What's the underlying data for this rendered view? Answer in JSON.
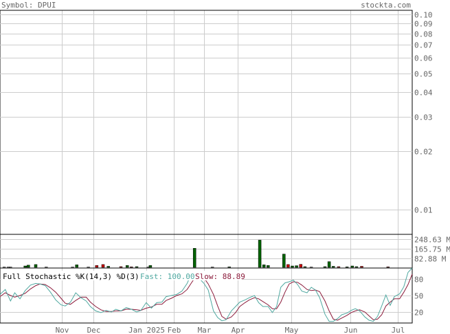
{
  "header": {
    "symbol_label": "Symbol: DPUI",
    "brand": "stockta.com"
  },
  "colors": {
    "up_bar": "#006400",
    "down_bar": "#cc0000",
    "grid": "#cccccc",
    "axis_text": "#666666",
    "fast_line": "#4fa8a0",
    "slow_line": "#8b1a3a"
  },
  "chart_data": [
    {
      "type": "line",
      "panel": "price",
      "scale": "log",
      "ylim": [
        0.0075,
        0.105
      ],
      "y_ticks": [
        0.1,
        0.09,
        0.08,
        0.07,
        0.06,
        0.05,
        0.04,
        0.03,
        0.02,
        0.01
      ],
      "y_tick_labels": [
        "0.10",
        "0.09",
        "0.08",
        "0.07",
        "0.06",
        "0.05",
        "0.04",
        "0.03",
        "0.02",
        "0.01"
      ],
      "series": []
    },
    {
      "type": "bar",
      "panel": "volume",
      "ylim": [
        0,
        290
      ],
      "y_ticks": [
        248.63,
        165.75,
        82.88
      ],
      "y_tick_labels": [
        "248.63 M",
        "165.75 M",
        "82.88 M"
      ],
      "bars": [
        {
          "x": 4,
          "v": 8,
          "dir": "up"
        },
        {
          "x": 8,
          "v": 8,
          "dir": "up"
        },
        {
          "x": 10,
          "v": 8,
          "dir": "up"
        },
        {
          "x": 24,
          "v": 18,
          "dir": "up"
        },
        {
          "x": 27,
          "v": 25,
          "dir": "up"
        },
        {
          "x": 34,
          "v": 30,
          "dir": "up"
        },
        {
          "x": 44,
          "v": 8,
          "dir": "up"
        },
        {
          "x": 69,
          "v": 8,
          "dir": "up"
        },
        {
          "x": 73,
          "v": 28,
          "dir": "up"
        },
        {
          "x": 84,
          "v": 8,
          "dir": "up"
        },
        {
          "x": 92,
          "v": 22,
          "dir": "down"
        },
        {
          "x": 98,
          "v": 30,
          "dir": "down"
        },
        {
          "x": 103,
          "v": 15,
          "dir": "up"
        },
        {
          "x": 115,
          "v": 12,
          "dir": "down"
        },
        {
          "x": 121,
          "v": 22,
          "dir": "up"
        },
        {
          "x": 125,
          "v": 10,
          "dir": "down"
        },
        {
          "x": 130,
          "v": 12,
          "dir": "up"
        },
        {
          "x": 141,
          "v": 8,
          "dir": "up"
        },
        {
          "x": 143,
          "v": 22,
          "dir": "up"
        },
        {
          "x": 185,
          "v": 170,
          "dir": "up"
        },
        {
          "x": 202,
          "v": 8,
          "dir": "up"
        },
        {
          "x": 218,
          "v": 10,
          "dir": "up"
        },
        {
          "x": 247,
          "v": 240,
          "dir": "up"
        },
        {
          "x": 251,
          "v": 28,
          "dir": "up"
        },
        {
          "x": 255,
          "v": 22,
          "dir": "up"
        },
        {
          "x": 270,
          "v": 120,
          "dir": "up"
        },
        {
          "x": 274,
          "v": 30,
          "dir": "down"
        },
        {
          "x": 278,
          "v": 18,
          "dir": "up"
        },
        {
          "x": 282,
          "v": 20,
          "dir": "up"
        },
        {
          "x": 286,
          "v": 32,
          "dir": "down"
        },
        {
          "x": 290,
          "v": 12,
          "dir": "up"
        },
        {
          "x": 296,
          "v": 8,
          "dir": "up"
        },
        {
          "x": 309,
          "v": 12,
          "dir": "up"
        },
        {
          "x": 313,
          "v": 55,
          "dir": "up"
        },
        {
          "x": 317,
          "v": 15,
          "dir": "up"
        },
        {
          "x": 322,
          "v": 12,
          "dir": "down"
        },
        {
          "x": 330,
          "v": 10,
          "dir": "up"
        },
        {
          "x": 335,
          "v": 18,
          "dir": "up"
        },
        {
          "x": 339,
          "v": 12,
          "dir": "up"
        },
        {
          "x": 344,
          "v": 15,
          "dir": "down"
        },
        {
          "x": 369,
          "v": 10,
          "dir": "down"
        }
      ]
    },
    {
      "type": "line",
      "panel": "stochastic",
      "title": "Full Stochastic %K(14,3) %D(3)",
      "fast_label": "Fast: 100.00",
      "slow_label": "Slow: 88.89",
      "ylim": [
        0,
        100
      ],
      "y_ticks": [
        80,
        50,
        20
      ],
      "y_tick_labels": [
        "80",
        "50",
        "20"
      ],
      "series": [
        {
          "role": "fast",
          "values": [
            [
              0,
              52
            ],
            [
              5,
              61
            ],
            [
              10,
              40
            ],
            [
              14,
              55
            ],
            [
              19,
              44
            ],
            [
              24,
              59
            ],
            [
              29,
              69
            ],
            [
              34,
              72
            ],
            [
              38,
              71
            ],
            [
              43,
              68
            ],
            [
              48,
              56
            ],
            [
              53,
              42
            ],
            [
              58,
              33
            ],
            [
              62,
              31
            ],
            [
              67,
              38
            ],
            [
              72,
              55
            ],
            [
              77,
              46
            ],
            [
              82,
              40
            ],
            [
              86,
              30
            ],
            [
              91,
              22
            ],
            [
              96,
              19
            ],
            [
              101,
              23
            ],
            [
              106,
              20
            ],
            [
              110,
              25
            ],
            [
              115,
              22
            ],
            [
              120,
              28
            ],
            [
              125,
              25
            ],
            [
              130,
              20
            ],
            [
              134,
              23
            ],
            [
              139,
              37
            ],
            [
              144,
              27
            ],
            [
              149,
              37
            ],
            [
              154,
              38
            ],
            [
              158,
              48
            ],
            [
              163,
              50
            ],
            [
              168,
              52
            ],
            [
              173,
              58
            ],
            [
              178,
              72
            ],
            [
              182,
              90
            ],
            [
              186,
              92
            ],
            [
              190,
              80
            ],
            [
              194,
              72
            ],
            [
              198,
              60
            ],
            [
              203,
              22
            ],
            [
              207,
              10
            ],
            [
              211,
              4
            ],
            [
              215,
              6
            ],
            [
              220,
              22
            ],
            [
              224,
              30
            ],
            [
              228,
              38
            ],
            [
              233,
              42
            ],
            [
              237,
              46
            ],
            [
              242,
              50
            ],
            [
              246,
              37
            ],
            [
              250,
              30
            ],
            [
              255,
              30
            ],
            [
              259,
              19
            ],
            [
              263,
              30
            ],
            [
              267,
              65
            ],
            [
              271,
              73
            ],
            [
              275,
              75
            ],
            [
              279,
              78
            ],
            [
              283,
              70
            ],
            [
              287,
              58
            ],
            [
              292,
              55
            ],
            [
              296,
              65
            ],
            [
              300,
              60
            ],
            [
              304,
              46
            ],
            [
              309,
              16
            ],
            [
              313,
              3
            ],
            [
              317,
              3
            ],
            [
              321,
              8
            ],
            [
              325,
              15
            ],
            [
              330,
              18
            ],
            [
              334,
              23
            ],
            [
              338,
              26
            ],
            [
              342,
              22
            ],
            [
              347,
              11
            ],
            [
              351,
              5
            ],
            [
              355,
              3
            ],
            [
              359,
              12
            ],
            [
              363,
              31
            ],
            [
              367,
              51
            ],
            [
              371,
              32
            ],
            [
              375,
              48
            ],
            [
              380,
              53
            ],
            [
              384,
              66
            ],
            [
              388,
              92
            ],
            [
              392,
              100
            ]
          ]
        },
        {
          "role": "slow",
          "values": [
            [
              0,
              48
            ],
            [
              5,
              55
            ],
            [
              10,
              50
            ],
            [
              14,
              47
            ],
            [
              19,
              50
            ],
            [
              24,
              54
            ],
            [
              29,
              62
            ],
            [
              34,
              68
            ],
            [
              38,
              71
            ],
            [
              43,
              70
            ],
            [
              48,
              64
            ],
            [
              53,
              56
            ],
            [
              58,
              45
            ],
            [
              62,
              36
            ],
            [
              67,
              34
            ],
            [
              72,
              41
            ],
            [
              77,
              47
            ],
            [
              82,
              47
            ],
            [
              86,
              38
            ],
            [
              91,
              30
            ],
            [
              96,
              24
            ],
            [
              101,
              21
            ],
            [
              106,
              21
            ],
            [
              110,
              22
            ],
            [
              115,
              22
            ],
            [
              120,
              25
            ],
            [
              125,
              25
            ],
            [
              130,
              24
            ],
            [
              134,
              23
            ],
            [
              139,
              27
            ],
            [
              144,
              29
            ],
            [
              149,
              34
            ],
            [
              154,
              34
            ],
            [
              158,
              41
            ],
            [
              163,
              45
            ],
            [
              168,
              50
            ],
            [
              173,
              53
            ],
            [
              178,
              61
            ],
            [
              182,
              73
            ],
            [
              186,
              84
            ],
            [
              190,
              87
            ],
            [
              194,
              82
            ],
            [
              198,
              71
            ],
            [
              203,
              52
            ],
            [
              207,
              31
            ],
            [
              211,
              12
            ],
            [
              215,
              7
            ],
            [
              220,
              11
            ],
            [
              224,
              19
            ],
            [
              228,
              30
            ],
            [
              233,
              37
            ],
            [
              237,
              42
            ],
            [
              242,
              46
            ],
            [
              246,
              44
            ],
            [
              250,
              39
            ],
            [
              255,
              33
            ],
            [
              259,
              26
            ],
            [
              263,
              26
            ],
            [
              267,
              38
            ],
            [
              271,
              56
            ],
            [
              275,
              71
            ],
            [
              279,
              75
            ],
            [
              283,
              74
            ],
            [
              287,
              69
            ],
            [
              292,
              61
            ],
            [
              296,
              59
            ],
            [
              300,
              60
            ],
            [
              304,
              57
            ],
            [
              309,
              40
            ],
            [
              313,
              22
            ],
            [
              317,
              7
            ],
            [
              321,
              5
            ],
            [
              325,
              9
            ],
            [
              330,
              14
            ],
            [
              334,
              19
            ],
            [
              338,
              22
            ],
            [
              342,
              24
            ],
            [
              347,
              20
            ],
            [
              351,
              13
            ],
            [
              355,
              6
            ],
            [
              359,
              7
            ],
            [
              363,
              15
            ],
            [
              367,
              31
            ],
            [
              371,
              38
            ],
            [
              375,
              44
            ],
            [
              380,
              44
            ],
            [
              384,
              56
            ],
            [
              388,
              70
            ],
            [
              392,
              89
            ]
          ]
        }
      ]
    }
  ],
  "x_axis": {
    "domain_days": [
      0,
      392
    ],
    "ticks": [
      {
        "day": 59,
        "label": "Nov"
      },
      {
        "day": 89,
        "label": "Dec"
      },
      {
        "day": 139,
        "label": "Jan 2025"
      },
      {
        "day": 165,
        "label": "Feb"
      },
      {
        "day": 194,
        "label": "Mar"
      },
      {
        "day": 226,
        "label": "Apr"
      },
      {
        "day": 277,
        "label": "May"
      },
      {
        "day": 333,
        "label": "Jun"
      },
      {
        "day": 378,
        "label": "Jul"
      }
    ]
  }
}
